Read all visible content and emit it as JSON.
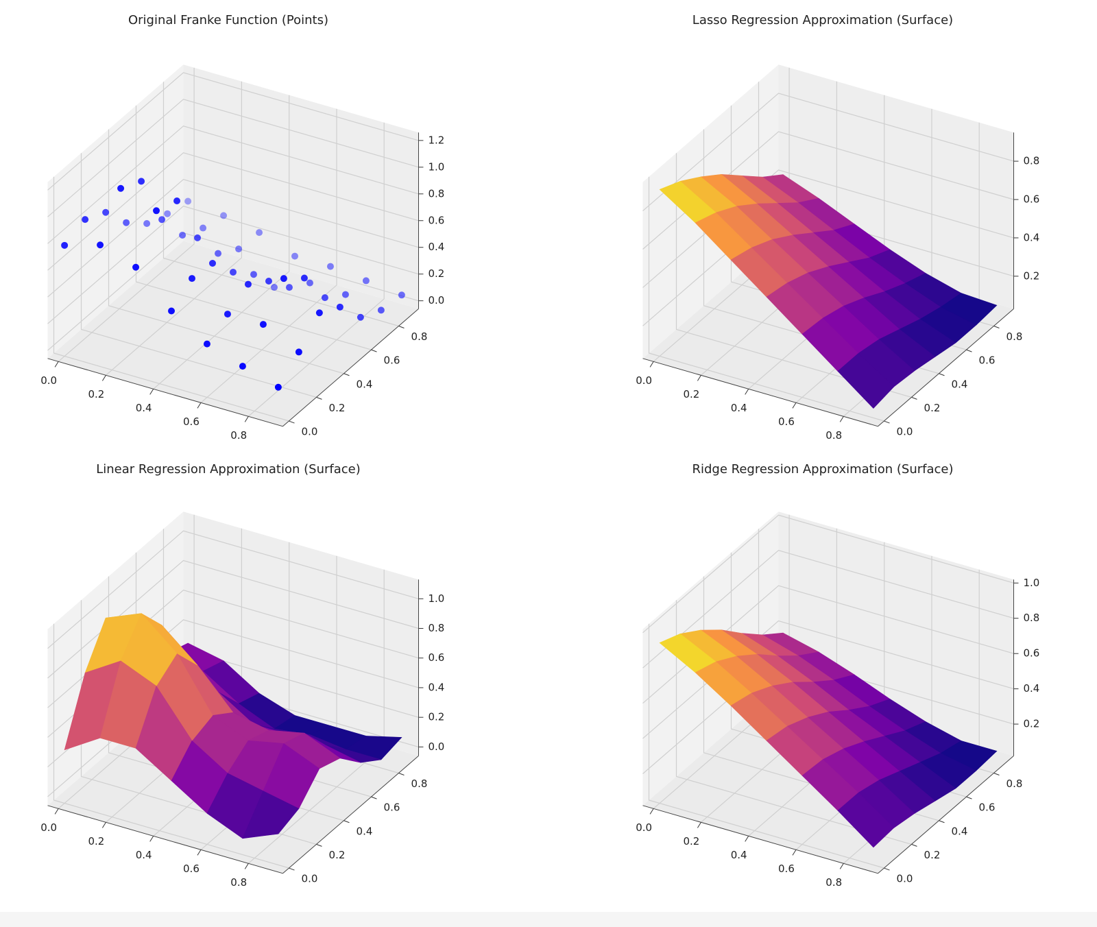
{
  "chart_data": [
    {
      "type": "scatter3d",
      "title": "Original Franke Function (Points)",
      "color": "#0000ff",
      "x": [
        0,
        0.15,
        0.3,
        0.45,
        0.6,
        0.75,
        0.9
      ],
      "y": [
        0,
        0.15,
        0.3,
        0.45,
        0.6,
        0.75,
        0.9
      ],
      "z": [
        [
          0.77,
          0.83,
          0.75,
          0.54,
          0.4,
          0.34,
          0.3
        ],
        [
          0.85,
          1.14,
          1.06,
          0.64,
          0.39,
          0.31,
          0.27
        ],
        [
          0.76,
          1.05,
          0.99,
          0.58,
          0.33,
          0.23,
          0.22
        ],
        [
          0.51,
          0.62,
          0.6,
          0.4,
          0.25,
          0.02,
          0.12
        ],
        [
          0.34,
          0.43,
          0.52,
          0.41,
          0.23,
          0.13,
          0.12
        ],
        [
          0.25,
          0.43,
          0.64,
          0.51,
          0.23,
          0.12,
          0.09
        ],
        [
          0.17,
          0.3,
          0.46,
          0.37,
          0.16,
          0.08,
          0.06
        ]
      ],
      "xlim": [
        -0.045,
        0.945
      ],
      "ylim": [
        -0.045,
        0.945
      ],
      "zlim": [
        -0.06,
        1.26
      ],
      "xticks": [
        {
          "value": 0,
          "label": "0.0"
        },
        0.2,
        0.4,
        0.6,
        0.8
      ],
      "yticks": [
        {
          "value": 0,
          "label": "0.0"
        },
        0.2,
        0.4,
        0.6,
        0.8
      ],
      "zticks": [
        {
          "value": 0,
          "label": "0.0"
        },
        0.2,
        0.4,
        0.6,
        0.8,
        {
          "value": 1,
          "label": "1.0"
        },
        1.2
      ],
      "grid": true
    },
    {
      "type": "surface3d",
      "title": "Lasso Regression Approximation (Surface)",
      "colormap": "plasma",
      "x": [
        0,
        0.15,
        0.3,
        0.45,
        0.6,
        0.75,
        0.9
      ],
      "y": [
        0,
        0.15,
        0.3,
        0.45,
        0.6,
        0.75,
        0.9
      ],
      "z": [
        [
          0.9,
          0.85,
          0.78,
          0.7,
          0.6,
          0.5,
          0.42
        ],
        [
          0.78,
          0.74,
          0.68,
          0.6,
          0.51,
          0.42,
          0.35
        ],
        [
          0.64,
          0.61,
          0.56,
          0.49,
          0.41,
          0.33,
          0.27
        ],
        [
          0.5,
          0.48,
          0.44,
          0.38,
          0.31,
          0.24,
          0.19
        ],
        [
          0.36,
          0.35,
          0.32,
          0.27,
          0.21,
          0.16,
          0.12
        ],
        [
          0.22,
          0.22,
          0.2,
          0.16,
          0.12,
          0.09,
          0.07
        ],
        [
          0.08,
          0.1,
          0.09,
          0.07,
          0.05,
          0.05,
          0.06
        ]
      ],
      "xlim": [
        -0.045,
        0.945
      ],
      "ylim": [
        -0.045,
        0.945
      ],
      "zlim": [
        0.03,
        0.95
      ],
      "xticks": [
        {
          "value": 0,
          "label": "0.0"
        },
        0.2,
        0.4,
        0.6,
        0.8
      ],
      "yticks": [
        {
          "value": 0,
          "label": "0.0"
        },
        0.2,
        0.4,
        0.6,
        0.8
      ],
      "zticks": [
        0.2,
        0.4,
        0.6,
        0.8
      ],
      "grid": true
    },
    {
      "type": "surface3d",
      "title": "Linear Regression Approximation (Surface)",
      "colormap": "plasma",
      "x": [
        0,
        0.15,
        0.3,
        0.45,
        0.6,
        0.75,
        0.9
      ],
      "y": [
        0,
        0.15,
        0.3,
        0.45,
        0.6,
        0.75,
        0.9
      ],
      "z": [
        [
          0.3,
          0.7,
          0.95,
          0.8,
          0.5,
          0.35,
          0.3
        ],
        [
          0.45,
          0.85,
          1.05,
          0.85,
          0.5,
          0.3,
          0.25
        ],
        [
          0.45,
          0.75,
          0.85,
          0.65,
          0.35,
          0.15,
          0.1
        ],
        [
          0.3,
          0.45,
          0.5,
          0.4,
          0.2,
          0.05,
          0.02
        ],
        [
          0.15,
          0.3,
          0.4,
          0.35,
          0.2,
          0.08,
          0.02
        ],
        [
          0.05,
          0.25,
          0.45,
          0.4,
          0.2,
          0.05,
          0.02
        ],
        [
          0.15,
          0.2,
          0.35,
          0.3,
          0.15,
          0.05,
          0.08
        ]
      ],
      "xlim": [
        -0.045,
        0.945
      ],
      "ylim": [
        -0.045,
        0.945
      ],
      "zlim": [
        -0.06,
        1.13
      ],
      "xticks": [
        {
          "value": 0,
          "label": "0.0"
        },
        0.2,
        0.4,
        0.6,
        0.8
      ],
      "yticks": [
        {
          "value": 0,
          "label": "0.0"
        },
        0.2,
        0.4,
        0.6,
        0.8
      ],
      "zticks": [
        {
          "value": 0,
          "label": "0.0"
        },
        0.2,
        0.4,
        0.6,
        0.8,
        {
          "value": 1,
          "label": "1.0"
        }
      ],
      "grid": true
    },
    {
      "type": "surface3d",
      "title": "Ridge Regression Approximation (Surface)",
      "colormap": "plasma",
      "x": [
        0,
        0.15,
        0.3,
        0.45,
        0.6,
        0.75,
        0.9
      ],
      "y": [
        0,
        0.15,
        0.3,
        0.45,
        0.6,
        0.75,
        0.9
      ],
      "z": [
        [
          0.93,
          0.88,
          0.8,
          0.7,
          0.58,
          0.47,
          0.38
        ],
        [
          0.82,
          0.78,
          0.71,
          0.62,
          0.51,
          0.41,
          0.33
        ],
        [
          0.69,
          0.66,
          0.6,
          0.52,
          0.42,
          0.33,
          0.26
        ],
        [
          0.55,
          0.53,
          0.48,
          0.41,
          0.32,
          0.24,
          0.18
        ],
        [
          0.41,
          0.4,
          0.36,
          0.3,
          0.23,
          0.16,
          0.11
        ],
        [
          0.27,
          0.27,
          0.24,
          0.19,
          0.14,
          0.09,
          0.06
        ],
        [
          0.12,
          0.13,
          0.11,
          0.08,
          0.05,
          0.05,
          0.06
        ]
      ],
      "xlim": [
        -0.045,
        0.945
      ],
      "ylim": [
        -0.045,
        0.945
      ],
      "zlim": [
        0.02,
        1.02
      ],
      "xticks": [
        {
          "value": 0,
          "label": "0.0"
        },
        0.2,
        0.4,
        0.6,
        0.8
      ],
      "yticks": [
        {
          "value": 0,
          "label": "0.0"
        },
        0.2,
        0.4,
        0.6,
        0.8
      ],
      "zticks": [
        0.2,
        0.4,
        0.6,
        0.8,
        {
          "value": 1,
          "label": "1.0"
        }
      ],
      "grid": true
    }
  ]
}
